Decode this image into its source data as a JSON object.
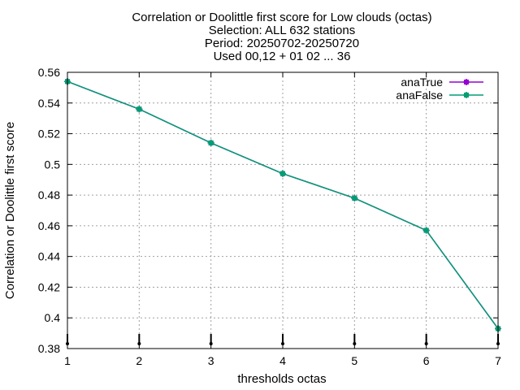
{
  "chart_data": {
    "type": "line",
    "title_lines": [
      "Correlation or Doolittle first score  for Low clouds (octas)",
      "Selection: ALL    632 stations",
      "Period: 20250702-20250720",
      "Used 00,12 + 01 02 ... 36"
    ],
    "xlabel": "thresholds octas",
    "ylabel": "Correlation or Doolittle first score",
    "x": [
      1,
      2,
      3,
      4,
      5,
      6,
      7
    ],
    "xlim": [
      1,
      7
    ],
    "ylim": [
      0.38,
      0.56
    ],
    "xticks": [
      "1",
      "2",
      "3",
      "4",
      "5",
      "6",
      "7"
    ],
    "yticks": [
      "0.38",
      "0.4",
      "0.42",
      "0.44",
      "0.46",
      "0.48",
      "0.5",
      "0.52",
      "0.54",
      "0.56"
    ],
    "grid": true,
    "legend_position": "top-right",
    "series": [
      {
        "name": "anaTrue",
        "color": "#9400d3",
        "values": [
          0.554,
          0.536,
          0.514,
          0.494,
          0.478,
          0.457,
          0.393
        ]
      },
      {
        "name": "anaFalse",
        "color": "#009e73",
        "values": [
          0.554,
          0.536,
          0.514,
          0.494,
          0.478,
          0.457,
          0.393
        ]
      }
    ]
  }
}
